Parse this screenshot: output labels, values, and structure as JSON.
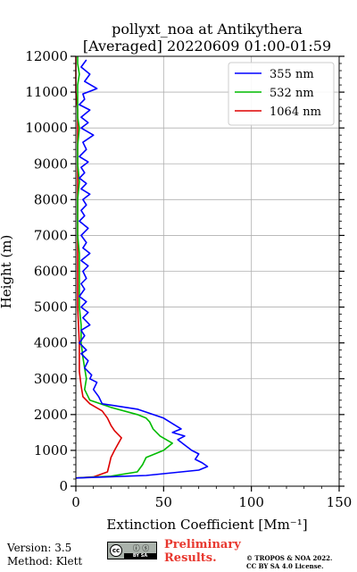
{
  "colors": {
    "s355": "#0000ff",
    "s532": "#00bb00",
    "s1064": "#dd0000",
    "grid": "#b0b0b0"
  },
  "chart_data": {
    "type": "line",
    "title": [
      "pollyxt_noa at Antikythera",
      "[Averaged] 20220609 01:00-01:59"
    ],
    "xlabel": "Extinction Coefficient [Mm⁻¹]",
    "ylabel": "Height (m)",
    "xlim": [
      0,
      150
    ],
    "ylim": [
      0,
      12000
    ],
    "xticks": [
      0,
      50,
      100,
      150
    ],
    "yticks": [
      0,
      1000,
      2000,
      3000,
      4000,
      5000,
      6000,
      7000,
      8000,
      9000,
      10000,
      11000,
      12000
    ],
    "grid": true,
    "legend_position": "top-right",
    "series": [
      {
        "name": "355 nm",
        "color": "#0000ff",
        "x": [
          0,
          40,
          70,
          75,
          72,
          68,
          70,
          66,
          62,
          58,
          62,
          55,
          60,
          55,
          50,
          35,
          15,
          13,
          10,
          12,
          8,
          9,
          5,
          7,
          3,
          6,
          2,
          5,
          3,
          8,
          4,
          7,
          3,
          6,
          2,
          5,
          3,
          6,
          4,
          7,
          3,
          8,
          4,
          6,
          3,
          7,
          2,
          5,
          3,
          6,
          4,
          8,
          3,
          6,
          2,
          5,
          3,
          7,
          2,
          6,
          4,
          10,
          3,
          7,
          3,
          8,
          2,
          5,
          4,
          12,
          5,
          8,
          3,
          6
        ],
        "y": [
          230,
          300,
          450,
          550,
          650,
          750,
          900,
          1000,
          1150,
          1300,
          1400,
          1500,
          1600,
          1750,
          1900,
          2150,
          2300,
          2500,
          2700,
          2900,
          3000,
          3100,
          3300,
          3500,
          3700,
          3800,
          4000,
          4200,
          4350,
          4500,
          4700,
          4850,
          5000,
          5150,
          5300,
          5500,
          5650,
          5800,
          6000,
          6150,
          6300,
          6500,
          6650,
          6800,
          7000,
          7200,
          7400,
          7550,
          7700,
          7850,
          8000,
          8150,
          8300,
          8450,
          8600,
          8750,
          8900,
          9050,
          9200,
          9400,
          9600,
          9800,
          10000,
          10150,
          10300,
          10500,
          10650,
          10800,
          10950,
          11100,
          11300,
          11500,
          11700,
          11900
        ]
      },
      {
        "name": "532 nm",
        "color": "#00bb00",
        "x": [
          0,
          20,
          35,
          38,
          40,
          50,
          55,
          48,
          44,
          42,
          40,
          35,
          20,
          8,
          5,
          6,
          5,
          4,
          3,
          3,
          2,
          2,
          2,
          2,
          1,
          1,
          1,
          2,
          1,
          1,
          2,
          1,
          1,
          1,
          1,
          2,
          1,
          1
        ],
        "y": [
          230,
          280,
          400,
          600,
          800,
          1000,
          1200,
          1400,
          1600,
          1800,
          1900,
          2000,
          2200,
          2400,
          2700,
          3000,
          3300,
          3600,
          4000,
          4500,
          5000,
          5500,
          6000,
          6500,
          7000,
          7500,
          8000,
          8500,
          9000,
          9500,
          10000,
          10300,
          10600,
          10900,
          11200,
          11500,
          11800,
          12000
        ]
      },
      {
        "name": "1064 nm",
        "color": "#dd0000",
        "x": [
          0,
          10,
          18,
          19,
          20,
          22,
          26,
          22,
          20,
          18,
          15,
          8,
          4,
          3,
          2,
          2,
          1,
          1,
          1,
          1,
          1,
          1,
          1,
          1,
          0,
          0,
          0,
          0
        ],
        "y": [
          230,
          260,
          400,
          600,
          800,
          1000,
          1350,
          1550,
          1700,
          1900,
          2100,
          2300,
          2500,
          2800,
          3200,
          4000,
          5000,
          6000,
          7000,
          8000,
          9000,
          9500,
          10000,
          10500,
          11000,
          11500,
          11800,
          12000
        ]
      }
    ]
  },
  "footer": {
    "version_line": "Version: 3.5",
    "method_line": "Method: Klett",
    "cc_badge_text": "BY  SA",
    "prelim_line1": "Preliminary",
    "prelim_line2": "Results.",
    "copyright_line1": "© TROPOS & NOA 2022.",
    "copyright_line2": "CC BY SA 4.0 License."
  }
}
